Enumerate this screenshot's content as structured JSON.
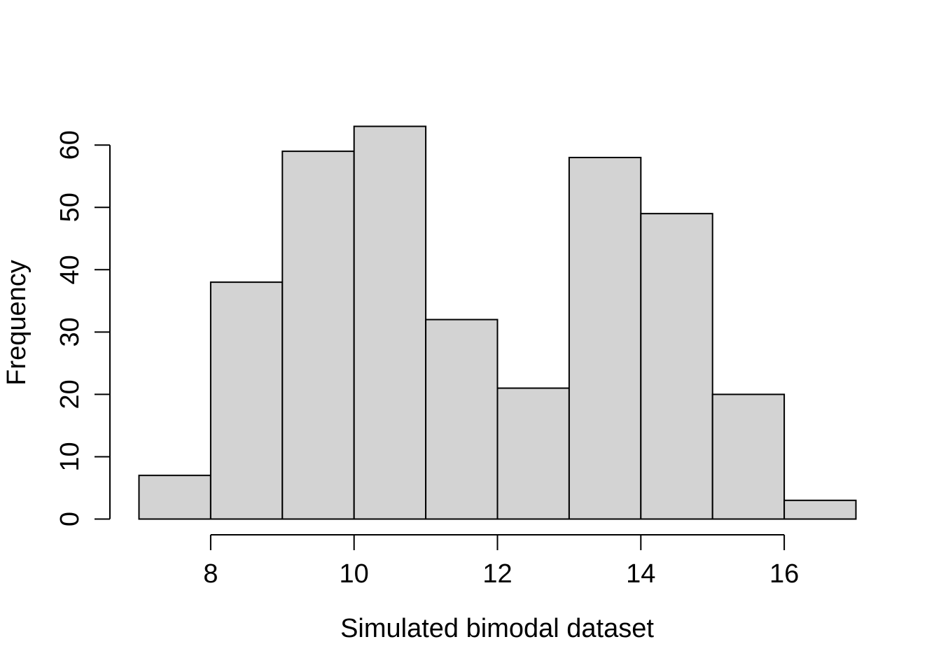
{
  "chart_data": {
    "type": "bar",
    "subtype": "histogram",
    "bins": [
      {
        "from": 7,
        "to": 8,
        "count": 7
      },
      {
        "from": 8,
        "to": 9,
        "count": 38
      },
      {
        "from": 9,
        "to": 10,
        "count": 59
      },
      {
        "from": 10,
        "to": 11,
        "count": 63
      },
      {
        "from": 11,
        "to": 12,
        "count": 32
      },
      {
        "from": 12,
        "to": 13,
        "count": 21
      },
      {
        "from": 13,
        "to": 14,
        "count": 58
      },
      {
        "from": 14,
        "to": 15,
        "count": 49
      },
      {
        "from": 15,
        "to": 16,
        "count": 20
      },
      {
        "from": 16,
        "to": 17,
        "count": 3
      }
    ],
    "title": "",
    "xlabel": "Simulated bimodal dataset",
    "ylabel": "Frequency",
    "x_ticks": [
      8,
      10,
      12,
      14,
      16
    ],
    "y_ticks": [
      0,
      10,
      20,
      30,
      40,
      50,
      60
    ],
    "xlim": [
      7,
      17
    ],
    "ylim": [
      0,
      63
    ],
    "bar_fill": "#d3d3d3",
    "bar_stroke": "#000000",
    "grid": false,
    "legend": "none"
  }
}
